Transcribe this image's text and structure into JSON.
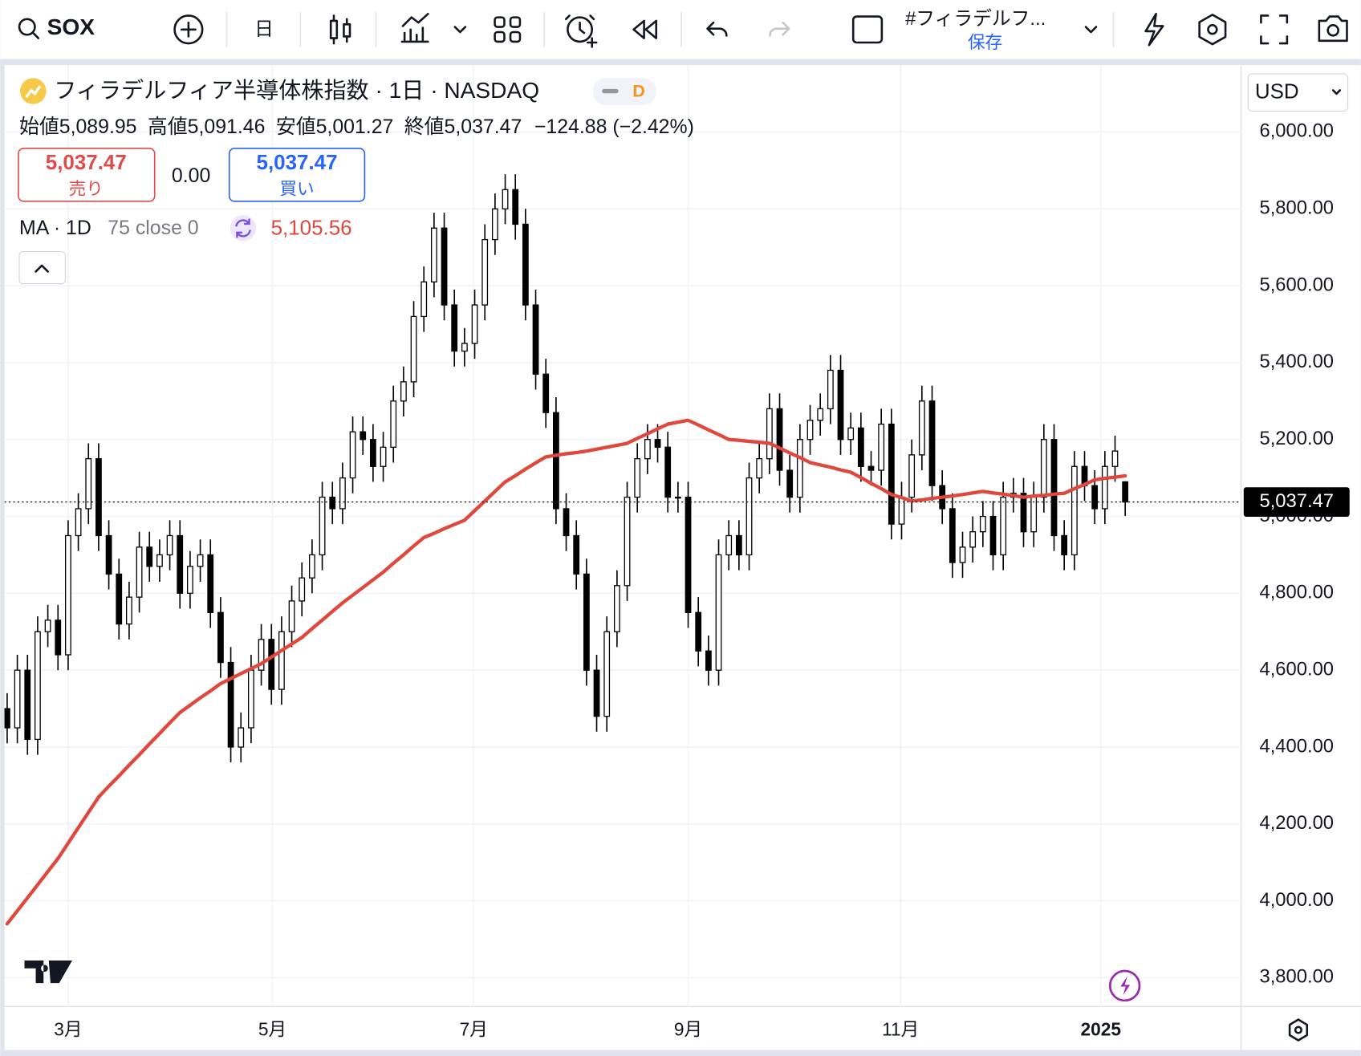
{
  "toolbar": {
    "symbol": "SOX",
    "interval": "日",
    "layout_name": "#フィラデルフ...",
    "save": "保存",
    "currency": "USD"
  },
  "legend": {
    "title": "フィラデルフィア半導体株指数 · 1日 · NASDAQ",
    "badge": "D",
    "open_label": "始値",
    "open": "5,089.95",
    "high_label": "高値",
    "high": "5,091.46",
    "low_label": "安値",
    "low": "5,001.27",
    "close_label": "終値",
    "close": "5,037.47",
    "change": "−124.88 (−2.42%)",
    "sell_price": "5,037.47",
    "sell": "売り",
    "spread": "0.00",
    "buy_price": "5,037.47",
    "buy": "買い",
    "ma_name": "MA · 1D",
    "ma_params": "75 close 0",
    "ma_value": "5,105.56"
  },
  "chart_data": {
    "type": "candlestick",
    "xlim": [
      -0.26,
      121.4
    ],
    "xticks": [
      {
        "value": 6,
        "label": "3月"
      },
      {
        "value": 26.1,
        "label": "5月"
      },
      {
        "value": 45.9,
        "label": "7月"
      },
      {
        "value": 67,
        "label": "9月"
      },
      {
        "value": 87.9,
        "label": "11月"
      },
      {
        "value": 107.6,
        "label": "2025"
      }
    ],
    "ylim": [
      3725,
      6174
    ],
    "yticks": [
      {
        "value": 3800,
        "label": "3,800.00"
      },
      {
        "value": 4000,
        "label": "4,000.00"
      },
      {
        "value": 4200,
        "label": "4,200.00"
      },
      {
        "value": 4400,
        "label": "4,400.00"
      },
      {
        "value": 4600,
        "label": "4,600.00"
      },
      {
        "value": 4800,
        "label": "4,800.00"
      },
      {
        "value": 5000,
        "label": "5,000.00"
      },
      {
        "value": 5200,
        "label": "5,200.00"
      },
      {
        "value": 5400,
        "label": "5,400.00"
      },
      {
        "value": 5600,
        "label": "5,600.00"
      },
      {
        "value": 5800,
        "label": "5,800.00"
      },
      {
        "value": 6000,
        "label": "6,000.00"
      }
    ],
    "grid": true,
    "up_color": "#ffffff",
    "down_color": "#000000",
    "open": [
      4500,
      4450,
      4600,
      4420,
      4700,
      4730,
      4640,
      4950,
      5020,
      5150,
      4950,
      4850,
      4720,
      4790,
      4920,
      4870,
      4900,
      4950,
      4800,
      4870,
      4900,
      4750,
      4620,
      4400,
      4450,
      4600,
      4680,
      4550,
      4700,
      4780,
      4840,
      4900,
      5050,
      5020,
      5100,
      5220,
      5200,
      5130,
      5180,
      5300,
      5350,
      5520,
      5610,
      5750,
      5550,
      5430,
      5450,
      5550,
      5720,
      5800,
      5850,
      5760,
      5550,
      5370,
      5270,
      5020,
      4950,
      4850,
      4600,
      4480,
      4700,
      4820,
      5050,
      5150,
      5200,
      5180,
      5050,
      5050,
      4750,
      4650,
      4600,
      4900,
      4950,
      4900,
      5100,
      5150,
      5280,
      5120,
      5050,
      5200,
      5250,
      5280,
      5380,
      5200,
      5230,
      5130,
      5120,
      5240,
      4980,
      5050,
      5160,
      5300,
      5080,
      5020,
      4880,
      4920,
      4960,
      5000,
      4900,
      5050,
      5060,
      4960,
      5050,
      5200,
      4950,
      4900,
      5130,
      5080,
      5020,
      5130,
      5089.95
    ],
    "high": [
      4540,
      4640,
      4640,
      4740,
      4770,
      4770,
      4990,
      5060,
      5190,
      5190,
      4990,
      4890,
      4830,
      4960,
      4960,
      4940,
      4990,
      4990,
      4910,
      4940,
      4940,
      4790,
      4660,
      4490,
      4640,
      4720,
      4720,
      4740,
      4820,
      4880,
      4940,
      5090,
      5090,
      5140,
      5260,
      5260,
      5240,
      5220,
      5340,
      5390,
      5560,
      5650,
      5790,
      5790,
      5590,
      5490,
      5590,
      5760,
      5840,
      5890,
      5890,
      5800,
      5590,
      5410,
      5310,
      5060,
      4990,
      4890,
      4640,
      4740,
      4860,
      5090,
      5190,
      5240,
      5240,
      5220,
      5090,
      5090,
      4790,
      4690,
      4940,
      4990,
      4990,
      5140,
      5190,
      5320,
      5320,
      5160,
      5240,
      5290,
      5320,
      5420,
      5420,
      5270,
      5270,
      5170,
      5280,
      5280,
      5090,
      5200,
      5340,
      5340,
      5120,
      5060,
      4960,
      5000,
      5040,
      5040,
      5090,
      5100,
      5100,
      5090,
      5240,
      5240,
      4990,
      5170,
      5170,
      5120,
      5170,
      5210,
      5091.46
    ],
    "low": [
      4410,
      4410,
      4380,
      4380,
      4660,
      4600,
      4600,
      4910,
      4980,
      4910,
      4810,
      4680,
      4680,
      4750,
      4830,
      4830,
      4860,
      4760,
      4760,
      4830,
      4710,
      4580,
      4360,
      4360,
      4410,
      4560,
      4510,
      4510,
      4660,
      4740,
      4800,
      4860,
      4980,
      4980,
      5060,
      5160,
      5090,
      5090,
      5140,
      5260,
      5310,
      5480,
      5570,
      5510,
      5390,
      5390,
      5410,
      5510,
      5680,
      5760,
      5720,
      5510,
      5330,
      5230,
      4980,
      4910,
      4810,
      4560,
      4440,
      4440,
      4660,
      4780,
      5010,
      5110,
      5140,
      5010,
      5010,
      4710,
      4610,
      4560,
      4560,
      4860,
      4860,
      4860,
      5060,
      5110,
      5080,
      5010,
      5010,
      5160,
      5210,
      5240,
      5160,
      5160,
      5090,
      5080,
      5080,
      4940,
      4940,
      5010,
      5120,
      5040,
      4980,
      4840,
      4840,
      4880,
      4920,
      4860,
      4860,
      5010,
      4920,
      4920,
      5010,
      4910,
      4860,
      4860,
      5040,
      4980,
      4980,
      5090,
      5001.27
    ],
    "close": [
      4450,
      4600,
      4420,
      4700,
      4730,
      4640,
      4950,
      5020,
      5150,
      4950,
      4850,
      4720,
      4790,
      4920,
      4870,
      4900,
      4950,
      4800,
      4870,
      4900,
      4750,
      4620,
      4400,
      4450,
      4600,
      4680,
      4550,
      4700,
      4780,
      4840,
      4900,
      5050,
      5020,
      5100,
      5220,
      5200,
      5130,
      5180,
      5300,
      5350,
      5520,
      5610,
      5750,
      5550,
      5430,
      5450,
      5550,
      5720,
      5800,
      5850,
      5760,
      5550,
      5370,
      5270,
      5020,
      4950,
      4850,
      4600,
      4480,
      4700,
      4820,
      5050,
      5150,
      5200,
      5180,
      5050,
      5050,
      4750,
      4650,
      4600,
      4900,
      4950,
      4900,
      5100,
      5150,
      5280,
      5120,
      5050,
      5200,
      5250,
      5280,
      5380,
      5200,
      5230,
      5130,
      5120,
      5240,
      4980,
      5050,
      5160,
      5300,
      5080,
      5020,
      4880,
      4920,
      4960,
      5000,
      4900,
      5050,
      5060,
      4960,
      5050,
      5200,
      4950,
      4900,
      5130,
      5080,
      5020,
      5130,
      5170,
      5037.47
    ],
    "series": [
      {
        "name": "MA",
        "color": "#e0483e",
        "values": [
          3940,
          3974,
          4008,
          4042,
          4076,
          4110,
          4150,
          4190,
          4230,
          4270,
          4298,
          4325,
          4353,
          4380,
          4408,
          4435,
          4463,
          4490,
          4509,
          4528,
          4546,
          4565,
          4578,
          4591,
          4604,
          4617,
          4634,
          4651,
          4668,
          4685,
          4708,
          4730,
          4753,
          4775,
          4795,
          4815,
          4835,
          4855,
          4878,
          4900,
          4923,
          4945,
          4956,
          4968,
          4979,
          4990,
          5015,
          5040,
          5065,
          5090,
          5106,
          5123,
          5139,
          5155,
          5159,
          5163,
          5166,
          5170,
          5175,
          5180,
          5185,
          5190,
          5203,
          5215,
          5228,
          5240,
          5245,
          5250,
          5238,
          5225,
          5213,
          5200,
          5198,
          5195,
          5193,
          5190,
          5178,
          5165,
          5153,
          5140,
          5134,
          5128,
          5121,
          5115,
          5101,
          5086,
          5072,
          5057,
          5049,
          5040,
          5043,
          5047,
          5050,
          5053,
          5057,
          5061,
          5065,
          5061,
          5058,
          5054,
          5050,
          5053,
          5055,
          5058,
          5060,
          5072,
          5083,
          5095,
          5099,
          5102,
          5105.56
        ]
      }
    ],
    "last_price": {
      "value": 5037.47,
      "label": "5,037.47"
    }
  }
}
